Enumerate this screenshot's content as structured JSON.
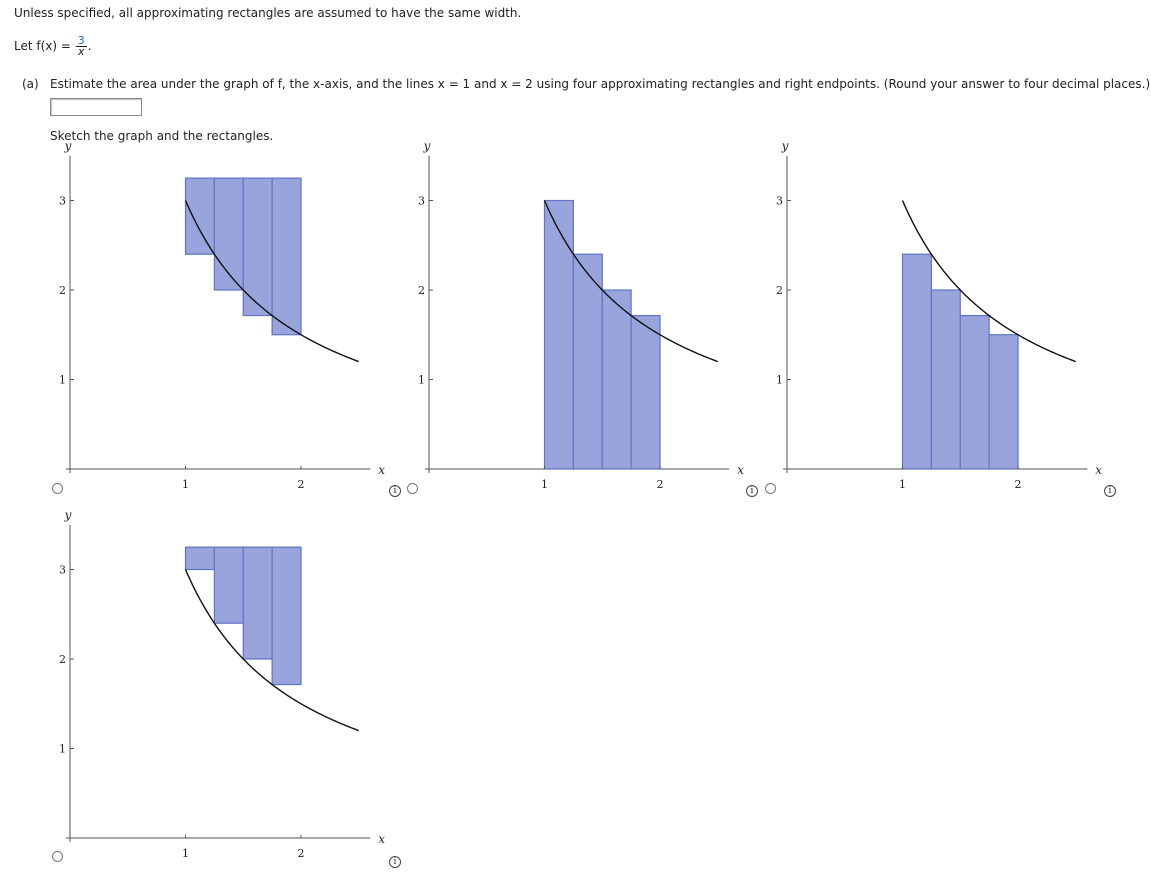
{
  "instructions": "Unless specified, all approximating rectangles are assumed to have the same width.",
  "function_def": {
    "prefix": "Let f(x) = ",
    "numerator": "3",
    "denominator": "x",
    "suffix": "."
  },
  "part_a": {
    "label": "(a)",
    "text": "Estimate the area under the graph of f, the x-axis, and the lines x = 1 and x = 2 using four approximating rectangles and right endpoints. (Round your answer to four decimal places.)",
    "answer_value": ""
  },
  "sketch_prompt": "Sketch the graph and the rectangles.",
  "options": [
    {
      "id": "option-1",
      "selected": false,
      "chart_data": {
        "type": "area",
        "x_label": "x",
        "y_label": "y",
        "x_ticks": [
          "1",
          "2"
        ],
        "y_ticks": [
          "1",
          "2",
          "3"
        ],
        "xlim": [
          0,
          2.6
        ],
        "ylim": [
          0,
          3.5
        ],
        "curve": "3/x",
        "curve_domain": [
          1,
          2.5
        ],
        "rect_tops_at": "fixed-top",
        "rectangles": [
          {
            "x0": 1,
            "x1": 1.25,
            "y0": 2.4,
            "y1": 3.25
          },
          {
            "x0": 1.25,
            "x1": 1.5,
            "y0": 2.0,
            "y1": 3.25
          },
          {
            "x0": 1.5,
            "x1": 1.75,
            "y0": 1.7143,
            "y1": 3.25
          },
          {
            "x0": 1.75,
            "x1": 2,
            "y0": 1.5,
            "y1": 3.25
          }
        ]
      }
    },
    {
      "id": "option-2",
      "selected": false,
      "chart_data": {
        "type": "bar",
        "x_label": "x",
        "y_label": "y",
        "x_ticks": [
          "1",
          "2"
        ],
        "y_ticks": [
          "1",
          "2",
          "3"
        ],
        "xlim": [
          0,
          2.6
        ],
        "ylim": [
          0,
          3.5
        ],
        "curve": "3/x",
        "curve_domain": [
          1,
          2.5
        ],
        "rectangles": [
          {
            "x0": 1,
            "x1": 1.25,
            "y0": 0,
            "y1": 3.0
          },
          {
            "x0": 1.25,
            "x1": 1.5,
            "y0": 0,
            "y1": 2.4
          },
          {
            "x0": 1.5,
            "x1": 1.75,
            "y0": 0,
            "y1": 2.0
          },
          {
            "x0": 1.75,
            "x1": 2,
            "y0": 0,
            "y1": 1.7143
          }
        ]
      }
    },
    {
      "id": "option-3",
      "selected": false,
      "chart_data": {
        "type": "bar",
        "x_label": "x",
        "y_label": "y",
        "x_ticks": [
          "1",
          "2"
        ],
        "y_ticks": [
          "1",
          "2",
          "3"
        ],
        "xlim": [
          0,
          2.6
        ],
        "ylim": [
          0,
          3.5
        ],
        "curve": "3/x",
        "curve_domain": [
          1,
          2.5
        ],
        "rectangles": [
          {
            "x0": 1,
            "x1": 1.25,
            "y0": 0,
            "y1": 2.4
          },
          {
            "x0": 1.25,
            "x1": 1.5,
            "y0": 0,
            "y1": 2.0
          },
          {
            "x0": 1.5,
            "x1": 1.75,
            "y0": 0,
            "y1": 1.7143
          },
          {
            "x0": 1.75,
            "x1": 2,
            "y0": 0,
            "y1": 1.5
          }
        ]
      }
    },
    {
      "id": "option-4",
      "selected": false,
      "chart_data": {
        "type": "area",
        "x_label": "x",
        "y_label": "y",
        "x_ticks": [
          "1",
          "2"
        ],
        "y_ticks": [
          "1",
          "2",
          "3"
        ],
        "xlim": [
          0,
          2.6
        ],
        "ylim": [
          0,
          3.5
        ],
        "curve": "3/x",
        "curve_domain": [
          1,
          2.5
        ],
        "rectangles": [
          {
            "x0": 1,
            "x1": 1.25,
            "y0": 3.0,
            "y1": 3.25
          },
          {
            "x0": 1.25,
            "x1": 1.5,
            "y0": 2.4,
            "y1": 3.25
          },
          {
            "x0": 1.5,
            "x1": 1.75,
            "y0": 2.0,
            "y1": 3.25
          },
          {
            "x0": 1.75,
            "x1": 2,
            "y0": 1.7143,
            "y1": 3.25
          }
        ]
      }
    }
  ],
  "colors": {
    "rect_fill": "#99a3dc",
    "rect_stroke": "#5f74c2",
    "curve": "#111111",
    "axis": "#555555"
  },
  "icons": {
    "info": "info-icon",
    "radio": "radio-button"
  },
  "info_glyph": "i"
}
